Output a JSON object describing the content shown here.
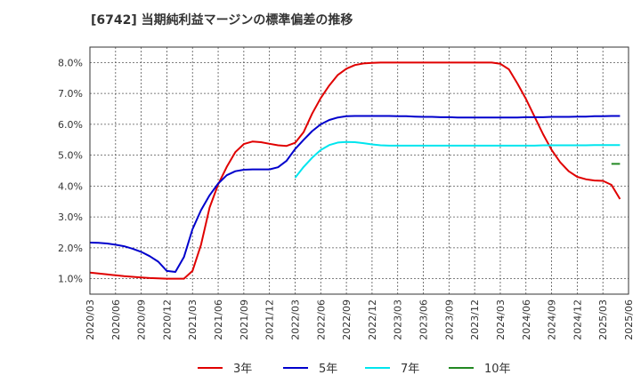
{
  "chart_data": {
    "type": "line",
    "title": "[6742]  当期純利益マージンの標準偏差の推移",
    "xlabel": "",
    "ylabel": "",
    "ylim": [
      0.5,
      8.5
    ],
    "y_ticks": [
      "1.0%",
      "2.0%",
      "3.0%",
      "4.0%",
      "5.0%",
      "6.0%",
      "7.0%",
      "8.0%"
    ],
    "y_tick_values": [
      1,
      2,
      3,
      4,
      5,
      6,
      7,
      8
    ],
    "x_ticks": [
      "2020/03",
      "2020/06",
      "2020/09",
      "2020/12",
      "2021/03",
      "2021/06",
      "2021/09",
      "2021/12",
      "2022/03",
      "2022/06",
      "2022/09",
      "2022/12",
      "2023/03",
      "2023/06",
      "2023/09",
      "2023/12",
      "2024/03",
      "2024/06",
      "2024/09",
      "2024/12",
      "2025/03",
      "2025/06"
    ],
    "grid": true,
    "legend_position": "bottom",
    "series": [
      {
        "name": "3年",
        "color": "#e00000",
        "start_index": 0,
        "values": [
          1.2,
          1.17,
          1.14,
          1.11,
          1.08,
          1.06,
          1.04,
          1.02,
          1.01,
          1.0,
          1.0,
          1.0,
          1.25,
          2.1,
          3.3,
          4.05,
          4.62,
          5.1,
          5.36,
          5.44,
          5.42,
          5.37,
          5.32,
          5.3,
          5.4,
          5.75,
          6.35,
          6.85,
          7.26,
          7.6,
          7.8,
          7.92,
          7.97,
          7.99,
          8.0,
          8.0,
          8.0,
          8.0,
          8.0,
          8.0,
          8.0,
          8.0,
          8.0,
          8.0,
          8.0,
          8.0,
          8.0,
          8.0,
          7.96,
          7.78,
          7.32,
          6.82,
          6.25,
          5.68,
          5.17,
          4.77,
          4.48,
          4.3,
          4.22,
          4.18,
          4.17,
          4.04,
          3.58
        ]
      },
      {
        "name": "5年",
        "color": "#0000cc",
        "start_index": 0,
        "values": [
          2.17,
          2.16,
          2.14,
          2.1,
          2.05,
          1.97,
          1.87,
          1.73,
          1.55,
          1.25,
          1.22,
          1.7,
          2.6,
          3.22,
          3.7,
          4.08,
          4.35,
          4.48,
          4.53,
          4.54,
          4.54,
          4.54,
          4.61,
          4.82,
          5.2,
          5.5,
          5.78,
          6.0,
          6.14,
          6.22,
          6.26,
          6.27,
          6.27,
          6.27,
          6.27,
          6.27,
          6.26,
          6.26,
          6.25,
          6.24,
          6.24,
          6.23,
          6.23,
          6.22,
          6.22,
          6.22,
          6.22,
          6.22,
          6.22,
          6.22,
          6.22,
          6.23,
          6.23,
          6.23,
          6.24,
          6.24,
          6.24,
          6.25,
          6.25,
          6.26,
          6.26,
          6.27,
          6.27
        ]
      },
      {
        "name": "7年",
        "color": "#00e5ee",
        "start_index": 24,
        "values": [
          4.27,
          4.62,
          4.92,
          5.17,
          5.33,
          5.41,
          5.43,
          5.42,
          5.39,
          5.35,
          5.32,
          5.31,
          5.31,
          5.31,
          5.31,
          5.31,
          5.31,
          5.31,
          5.31,
          5.31,
          5.31,
          5.31,
          5.31,
          5.31,
          5.31,
          5.31,
          5.31,
          5.31,
          5.31,
          5.32,
          5.32,
          5.32,
          5.32,
          5.32,
          5.32,
          5.33,
          5.33,
          5.33,
          5.33
        ]
      },
      {
        "name": "10年",
        "color": "#228822",
        "start_index": 61,
        "values": [
          4.72,
          4.72
        ]
      }
    ]
  }
}
